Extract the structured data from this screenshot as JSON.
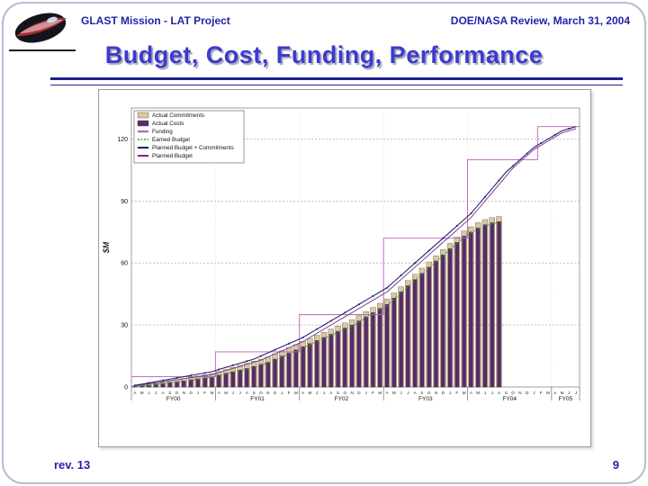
{
  "slide": {
    "header_left": "GLAST Mission - LAT Project",
    "header_right": "DOE/NASA Review, March 31, 2004",
    "title": "Budget, Cost, Funding, Performance",
    "footer_left": "rev. 13",
    "page_number": "9"
  },
  "colors": {
    "heading_blue": "#2323a8",
    "title_blue": "#3b3bd0",
    "rule_navy": "#20208e"
  },
  "chart_data": {
    "type": "bar",
    "title": "",
    "xlabel": "",
    "ylabel": "$M",
    "ylim": [
      0,
      135
    ],
    "yticks": [
      0,
      30,
      60,
      90,
      120
    ],
    "grid": true,
    "legend_position": "top-left",
    "fiscal_years": [
      "FY00",
      "FY01",
      "FY02",
      "FY03",
      "FY04",
      "FY05"
    ],
    "categories": [
      "A",
      "M",
      "J",
      "J",
      "A",
      "S",
      "O",
      "N",
      "D",
      "J",
      "F",
      "M",
      "A",
      "M",
      "J",
      "J",
      "A",
      "S",
      "O",
      "N",
      "D",
      "J",
      "F",
      "M",
      "A",
      "M",
      "J",
      "J",
      "A",
      "S",
      "O",
      "N",
      "D",
      "J",
      "F",
      "M",
      "A",
      "M",
      "J",
      "J",
      "A",
      "S",
      "O",
      "N",
      "D",
      "J",
      "F",
      "M",
      "A",
      "M",
      "J",
      "J",
      "A",
      "S",
      "O",
      "N",
      "D",
      "J",
      "F",
      "M",
      "A",
      "M",
      "J",
      "J"
    ],
    "series": [
      {
        "name": "Actual Commitments",
        "render": "bar",
        "color": "#d9c9a0",
        "edge": "#6b5a3a",
        "values": [
          0.6,
          1.1,
          1.6,
          2.1,
          2.6,
          3.1,
          3.6,
          4.1,
          4.7,
          5.3,
          5.9,
          6.5,
          7.5,
          8.5,
          9.5,
          10.5,
          11.5,
          12.5,
          13.5,
          14.5,
          16,
          17.5,
          19,
          20.5,
          22,
          23.5,
          25,
          26.5,
          28,
          29.5,
          31,
          32.5,
          34.5,
          36.5,
          38.5,
          40.5,
          42.5,
          45.5,
          48.5,
          51.5,
          54.5,
          57.5,
          60.5,
          63.5,
          66.5,
          69.5,
          72.5,
          75.5,
          77.5,
          79.5,
          81,
          82,
          82.5,
          null,
          null,
          null,
          null,
          null,
          null,
          null,
          null,
          null,
          null,
          null
        ]
      },
      {
        "name": "Actual Costs",
        "render": "bar",
        "color": "#5a2a6a",
        "edge": "#2e1538",
        "values": [
          0.3,
          0.6,
          1.0,
          1.4,
          1.8,
          2.2,
          2.6,
          3.0,
          3.5,
          4.0,
          4.5,
          5.0,
          5.8,
          6.6,
          7.4,
          8.2,
          9.0,
          10,
          11,
          12,
          13.5,
          15,
          16.5,
          18,
          19.5,
          21,
          22.5,
          24,
          25.5,
          27,
          28.5,
          30,
          32,
          34,
          36,
          38,
          40,
          43,
          46,
          49,
          52,
          55,
          58,
          61,
          64,
          67,
          70,
          73,
          75,
          77,
          78.5,
          79.5,
          80,
          null,
          null,
          null,
          null,
          null,
          null,
          null,
          null,
          null,
          null,
          null
        ]
      },
      {
        "name": "Funding",
        "render": "step-line",
        "color": "#b85fb8",
        "values": [
          5,
          5,
          5,
          5,
          5,
          5,
          5,
          5,
          5,
          5,
          5,
          5,
          17,
          17,
          17,
          17,
          17,
          17,
          17,
          17,
          17,
          17,
          17,
          17,
          35,
          35,
          35,
          35,
          35,
          35,
          35,
          35,
          35,
          35,
          35,
          35,
          72,
          72,
          72,
          72,
          72,
          72,
          72,
          72,
          72,
          72,
          72,
          72,
          110,
          110,
          110,
          110,
          110,
          110,
          110,
          110,
          110,
          110,
          126,
          126,
          126,
          126,
          126,
          126
        ]
      },
      {
        "name": "Earned Budget",
        "render": "dashed-line",
        "color": "#3c9c3c",
        "values": [
          0.2,
          0.5,
          0.8,
          1.2,
          1.6,
          2.0,
          2.4,
          2.8,
          3.2,
          3.7,
          4.2,
          4.7,
          5.5,
          6.3,
          7.1,
          7.9,
          8.7,
          9.6,
          10.6,
          11.6,
          13,
          14.5,
          16,
          17.5,
          19,
          20.5,
          22,
          23.5,
          25,
          26.5,
          28,
          29.5,
          31.5,
          33.5,
          35.5,
          37.5,
          39.5,
          42.5,
          45.5,
          48.5,
          51.5,
          54.5,
          57.5,
          60.5,
          63.5,
          66.5,
          69.5,
          72.5,
          74.5,
          76.5,
          78,
          79,
          79.5,
          null,
          null,
          null,
          null,
          null,
          null,
          null,
          null,
          null,
          null,
          null
        ]
      },
      {
        "name": "Planned Budget + Commitments",
        "render": "marker-line",
        "color": "#24246e",
        "values": [
          0.8,
          1.4,
          2,
          2.6,
          3.2,
          3.8,
          4.4,
          5,
          5.6,
          6.2,
          6.8,
          7.4,
          8.5,
          9.5,
          10.5,
          11.5,
          12.5,
          13.5,
          15,
          16.5,
          18,
          19.5,
          21,
          22.5,
          24,
          26,
          28,
          30,
          32,
          34,
          36,
          38,
          40,
          42,
          44,
          46,
          48,
          51,
          54,
          57,
          60,
          63,
          66,
          69,
          72,
          75,
          78,
          81,
          84,
          88,
          92,
          96,
          100,
          104,
          107,
          110,
          113,
          116,
          118,
          120,
          122,
          124,
          125,
          126
        ]
      },
      {
        "name": "Planned Budget",
        "render": "line",
        "color": "#7b2d8b",
        "values": [
          0.5,
          1,
          1.5,
          2,
          2.5,
          3,
          3.5,
          4,
          4.5,
          5,
          5.5,
          6,
          7,
          8,
          9,
          10,
          11,
          12,
          13,
          14.5,
          16,
          17.5,
          19,
          20.5,
          22,
          24,
          26,
          28,
          30,
          32,
          34,
          36,
          38,
          40,
          42,
          44,
          46,
          49,
          52,
          55,
          58,
          61,
          64,
          67,
          70,
          73,
          76,
          79,
          82,
          86,
          90,
          94,
          98,
          102,
          106,
          109,
          112,
          115,
          117,
          119,
          121,
          123,
          124,
          125
        ]
      }
    ]
  }
}
